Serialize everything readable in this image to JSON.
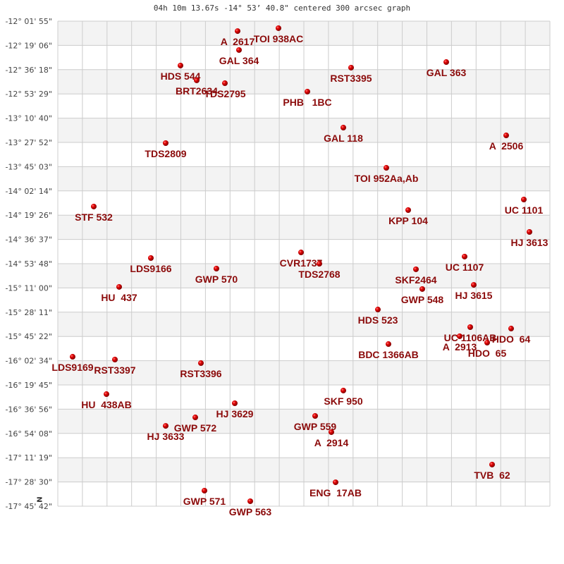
{
  "title": "04h 10m 13.67s -14° 53’ 40.8\" centered 300 arcsec graph",
  "north_marker": "N",
  "colors": {
    "star": "#dd0000",
    "label": "#8b0a0a",
    "band": "#f3f3f3",
    "grid": "#cccccc"
  },
  "dec_labels": [
    "-12° 01' 55\"",
    "-12° 19' 06\"",
    "-12° 36' 18\"",
    "-12° 53' 29\"",
    "-13° 10' 40\"",
    "-13° 27' 52\"",
    "-13° 45' 03\"",
    "-14° 02' 14\"",
    "-14° 19' 26\"",
    "-14° 36' 37\"",
    "-14° 53' 48\"",
    "-15° 11' 00\"",
    "-15° 28' 11\"",
    "-15° 45' 22\"",
    "-16° 02' 34\"",
    "-16° 19' 45\"",
    "-16° 36' 56\"",
    "-16° 54' 08\"",
    "-17° 11' 19\"",
    "-17° 28' 30\"",
    "-17° 45' 42\""
  ],
  "stars": [
    {
      "name": "A  2617",
      "offset_arcmin": -47,
      "dec": -12.149
    },
    {
      "name": "TOI 938AC",
      "offset_arcmin": -18,
      "dec": -12.115
    },
    {
      "name": "GAL 364",
      "offset_arcmin": -46,
      "dec": -12.373
    },
    {
      "name": "HDS 544",
      "offset_arcmin": -87.5,
      "dec": -12.556
    },
    {
      "name": "BRT2634",
      "offset_arcmin": -76,
      "dec": -12.731
    },
    {
      "name": "TDS2795",
      "offset_arcmin": -56,
      "dec": -12.765
    },
    {
      "name": "RST3395",
      "offset_arcmin": 33.5,
      "dec": -12.581
    },
    {
      "name": "GAL 363",
      "offset_arcmin": 101,
      "dec": -12.515
    },
    {
      "name": "PHB   1BC",
      "offset_arcmin": 2.5,
      "dec": -12.864
    },
    {
      "name": "GAL 118",
      "offset_arcmin": 28,
      "dec": -13.289
    },
    {
      "name": "A  2506",
      "offset_arcmin": 143.5,
      "dec": -13.381
    },
    {
      "name": "TDS2809",
      "offset_arcmin": -98,
      "dec": -13.472
    },
    {
      "name": "TOI 952Aa,Ab",
      "offset_arcmin": 58.5,
      "dec": -13.764
    },
    {
      "name": "STF 532",
      "offset_arcmin": -149,
      "dec": -14.221
    },
    {
      "name": "KPP 104",
      "offset_arcmin": 74,
      "dec": -14.263
    },
    {
      "name": "UC 1101",
      "offset_arcmin": 156,
      "dec": -14.138
    },
    {
      "name": "HJ 3613",
      "offset_arcmin": 160,
      "dec": -14.521
    },
    {
      "name": "LDS9166",
      "offset_arcmin": -108.5,
      "dec": -14.829
    },
    {
      "name": "CVR1737",
      "offset_arcmin": -2,
      "dec": -14.763
    },
    {
      "name": "TDS2768",
      "offset_arcmin": 11,
      "dec": -14.896
    },
    {
      "name": "GWP 570",
      "offset_arcmin": -62,
      "dec": -14.954
    },
    {
      "name": "UC 1107",
      "offset_arcmin": 114,
      "dec": -14.812
    },
    {
      "name": "SKF2464",
      "offset_arcmin": 79.5,
      "dec": -14.962
    },
    {
      "name": "HU  437",
      "offset_arcmin": -131,
      "dec": -15.17
    },
    {
      "name": "GWP 548",
      "offset_arcmin": 84,
      "dec": -15.195
    },
    {
      "name": "HJ 3615",
      "offset_arcmin": 120.5,
      "dec": -15.146
    },
    {
      "name": "HDS 523",
      "offset_arcmin": 52.5,
      "dec": -15.437
    },
    {
      "name": "UC 1106AB",
      "offset_arcmin": 118,
      "dec": -15.645
    },
    {
      "name": "A  2913",
      "offset_arcmin": 110.5,
      "dec": -15.753
    },
    {
      "name": "HDO  64",
      "offset_arcmin": 147,
      "dec": -15.662
    },
    {
      "name": "HDO  65",
      "offset_arcmin": 130,
      "dec": -15.828
    },
    {
      "name": "BDC 1366AB",
      "offset_arcmin": 60,
      "dec": -15.845
    },
    {
      "name": "LDS9169",
      "offset_arcmin": -164,
      "dec": -15.995
    },
    {
      "name": "RST3397",
      "offset_arcmin": -134,
      "dec": -16.028
    },
    {
      "name": "RST3396",
      "offset_arcmin": -73,
      "dec": -16.07
    },
    {
      "name": "HU  438AB",
      "offset_arcmin": -140,
      "dec": -16.436
    },
    {
      "name": "SKF 950",
      "offset_arcmin": 28,
      "dec": -16.394
    },
    {
      "name": "HJ 3629",
      "offset_arcmin": -49,
      "dec": -16.544
    },
    {
      "name": "GWP 559",
      "offset_arcmin": 8,
      "dec": -16.694
    },
    {
      "name": "GWP 572",
      "offset_arcmin": -77,
      "dec": -16.711
    },
    {
      "name": "HJ 3633",
      "offset_arcmin": -98,
      "dec": -16.811
    },
    {
      "name": "A  2914",
      "offset_arcmin": 19.5,
      "dec": -16.885
    },
    {
      "name": "TVB  62",
      "offset_arcmin": 133.5,
      "dec": -17.268
    },
    {
      "name": "ENG  17AB",
      "offset_arcmin": 22.5,
      "dec": -17.477
    },
    {
      "name": "GWP 571",
      "offset_arcmin": -70.5,
      "dec": -17.576
    },
    {
      "name": "GWP 563",
      "offset_arcmin": -38,
      "dec": -17.701
    }
  ]
}
